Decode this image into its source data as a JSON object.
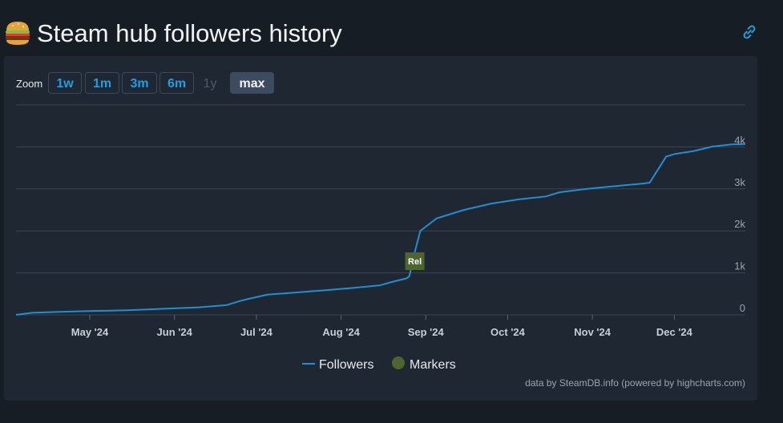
{
  "header": {
    "title": "Steam hub followers history",
    "icon": "burger-icon",
    "link_icon": "link-icon"
  },
  "zoom": {
    "label": "Zoom",
    "buttons": [
      {
        "label": "1w",
        "state": "enabled"
      },
      {
        "label": "1m",
        "state": "enabled"
      },
      {
        "label": "3m",
        "state": "enabled"
      },
      {
        "label": "6m",
        "state": "enabled"
      },
      {
        "label": "1y",
        "state": "disabled"
      },
      {
        "label": "max",
        "state": "active"
      }
    ]
  },
  "credit": "data by SteamDB.info (powered by highcharts.com)",
  "colors": {
    "line": "#1f8fd6",
    "marker": "#4f6530",
    "grid": "#3a4552"
  },
  "chart_data": {
    "type": "line",
    "x_axis": {
      "min": "2024-04-04",
      "max": "2024-12-27",
      "ticks": [
        "May '24",
        "Jun '24",
        "Jul '24",
        "Aug '24",
        "Sep '24",
        "Oct '24",
        "Nov '24",
        "Dec '24"
      ]
    },
    "y_axis": {
      "min": 0,
      "max": 5000,
      "ticks": [
        "0",
        "1k",
        "2k",
        "3k",
        "4k"
      ],
      "position": "right"
    },
    "grid": true,
    "legend": {
      "placement": "bottom-center",
      "entries": [
        "Followers",
        "Markers"
      ]
    },
    "series": [
      {
        "name": "Followers",
        "points": [
          [
            "2024-04-04",
            0
          ],
          [
            "2024-04-10",
            50
          ],
          [
            "2024-04-20",
            70
          ],
          [
            "2024-05-01",
            90
          ],
          [
            "2024-05-15",
            110
          ],
          [
            "2024-05-30",
            150
          ],
          [
            "2024-06-10",
            180
          ],
          [
            "2024-06-20",
            230
          ],
          [
            "2024-06-25",
            330
          ],
          [
            "2024-06-28",
            380
          ],
          [
            "2024-07-05",
            480
          ],
          [
            "2024-07-15",
            530
          ],
          [
            "2024-07-25",
            580
          ],
          [
            "2024-08-05",
            640
          ],
          [
            "2024-08-15",
            700
          ],
          [
            "2024-08-20",
            790
          ],
          [
            "2024-08-25",
            870
          ],
          [
            "2024-08-26",
            920
          ],
          [
            "2024-08-28",
            1500
          ],
          [
            "2024-08-30",
            2000
          ],
          [
            "2024-09-05",
            2300
          ],
          [
            "2024-09-15",
            2500
          ],
          [
            "2024-09-25",
            2650
          ],
          [
            "2024-10-05",
            2750
          ],
          [
            "2024-10-15",
            2820
          ],
          [
            "2024-10-20",
            2920
          ],
          [
            "2024-10-30",
            3000
          ],
          [
            "2024-11-10",
            3070
          ],
          [
            "2024-11-20",
            3130
          ],
          [
            "2024-11-22",
            3150
          ],
          [
            "2024-11-28",
            3770
          ],
          [
            "2024-12-01",
            3830
          ],
          [
            "2024-12-08",
            3900
          ],
          [
            "2024-12-15",
            4010
          ],
          [
            "2024-12-22",
            4060
          ],
          [
            "2024-12-27",
            4070
          ]
        ]
      }
    ],
    "markers": [
      {
        "label": "Rel",
        "x": "2024-08-28"
      }
    ]
  }
}
